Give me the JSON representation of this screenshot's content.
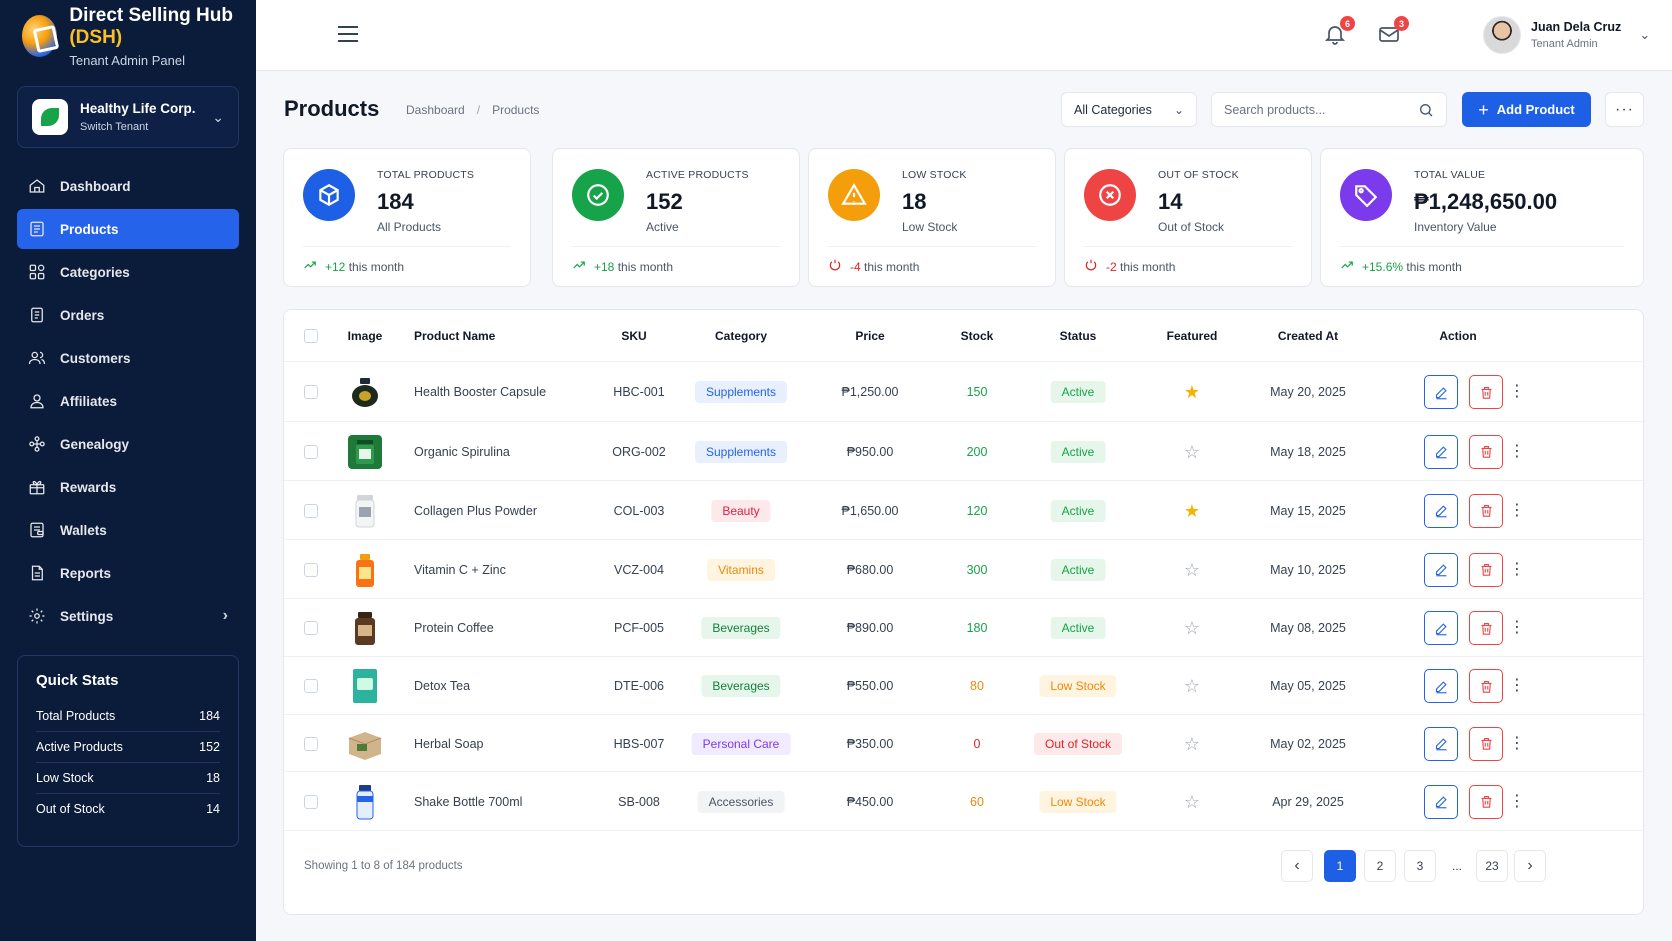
{
  "brand": {
    "title": "Direct Selling Hub",
    "title_accent": "(DSH)",
    "subtitle": "Tenant Admin Panel"
  },
  "tenant": {
    "name": "Healthy Life Corp.",
    "action": "Switch Tenant"
  },
  "nav": [
    {
      "label": "Dashboard",
      "icon": "home-icon"
    },
    {
      "label": "Products",
      "icon": "product-list-icon",
      "active": true
    },
    {
      "label": "Categories",
      "icon": "categories-icon"
    },
    {
      "label": "Orders",
      "icon": "orders-icon"
    },
    {
      "label": "Customers",
      "icon": "customers-icon"
    },
    {
      "label": "Affiliates",
      "icon": "affiliates-icon"
    },
    {
      "label": "Genealogy",
      "icon": "genealogy-icon"
    },
    {
      "label": "Rewards",
      "icon": "gift-icon"
    },
    {
      "label": "Wallets",
      "icon": "wallet-icon"
    },
    {
      "label": "Reports",
      "icon": "reports-icon"
    },
    {
      "label": "Settings",
      "icon": "gear-icon",
      "has_submenu": true
    }
  ],
  "quick_stats": {
    "title": "Quick Stats",
    "rows": [
      {
        "label": "Total Products",
        "value": "184"
      },
      {
        "label": "Active Products",
        "value": "152"
      },
      {
        "label": "Low Stock",
        "value": "18"
      },
      {
        "label": "Out of Stock",
        "value": "14"
      }
    ]
  },
  "topbar": {
    "notifications_count": "6",
    "messages_count": "3",
    "user_name": "Juan Dela Cruz",
    "user_role": "Tenant Admin"
  },
  "page": {
    "title": "Products",
    "breadcrumb": [
      "Dashboard",
      "Products"
    ],
    "category_filter": "All Categories",
    "search_placeholder": "Search products...",
    "add_button": "Add Product",
    "more_button": "···"
  },
  "stats": [
    {
      "label": "TOTAL PRODUCTS",
      "value": "184",
      "sub": "All Products",
      "trend": "+12",
      "trend_text": "this month",
      "direction": "up",
      "color": "#1d5fe5",
      "icon": "cube-icon"
    },
    {
      "label": "ACTIVE PRODUCTS",
      "value": "152",
      "sub": "Active",
      "trend": "+18",
      "trend_text": "this month",
      "direction": "up",
      "color": "#16a34a",
      "icon": "check-circle-icon"
    },
    {
      "label": "LOW STOCK",
      "value": "18",
      "sub": "Low Stock",
      "trend": "-4",
      "trend_text": "this month",
      "direction": "down",
      "color": "#f59e0b",
      "icon": "warning-icon"
    },
    {
      "label": "OUT OF STOCK",
      "value": "14",
      "sub": "Out of Stock",
      "trend": "-2",
      "trend_text": "this month",
      "direction": "down",
      "color": "#ef4444",
      "icon": "x-circle-icon"
    },
    {
      "label": "TOTAL VALUE",
      "value": "₱1,248,650.00",
      "sub": "Inventory Value",
      "trend": "+15.6%",
      "trend_text": "this month",
      "direction": "up",
      "color": "#7c3aed",
      "icon": "tag-icon"
    }
  ],
  "table": {
    "columns": [
      "Image",
      "Product Name",
      "SKU",
      "Category",
      "Price",
      "Stock",
      "Status",
      "Featured",
      "Created At",
      "Action"
    ],
    "rows": [
      {
        "name": "Health Booster Capsule",
        "sku": "HBC-001",
        "category": "Supplements",
        "price": "₱1,250.00",
        "stock": "150",
        "status": "Active",
        "featured": true,
        "created": "May 20, 2025",
        "image": "capsule-bottle-icon"
      },
      {
        "name": "Organic Spirulina",
        "sku": "ORG-002",
        "category": "Supplements",
        "price": "₱950.00",
        "stock": "200",
        "status": "Active",
        "featured": false,
        "created": "May 18, 2025",
        "image": "green-jar-icon"
      },
      {
        "name": "Collagen Plus Powder",
        "sku": "COL-003",
        "category": "Beauty",
        "price": "₱1,650.00",
        "stock": "120",
        "status": "Active",
        "featured": true,
        "created": "May 15, 2025",
        "image": "white-tub-icon"
      },
      {
        "name": "Vitamin C + Zinc",
        "sku": "VCZ-004",
        "category": "Vitamins",
        "price": "₱680.00",
        "stock": "300",
        "status": "Active",
        "featured": false,
        "created": "May 10, 2025",
        "image": "orange-bottle-icon"
      },
      {
        "name": "Protein Coffee",
        "sku": "PCF-005",
        "category": "Beverages",
        "price": "₱890.00",
        "stock": "180",
        "status": "Active",
        "featured": false,
        "created": "May 08, 2025",
        "image": "coffee-jar-icon"
      },
      {
        "name": "Detox Tea",
        "sku": "DTE-006",
        "category": "Beverages",
        "price": "₱550.00",
        "stock": "80",
        "status": "Low Stock",
        "featured": false,
        "created": "May 05, 2025",
        "image": "tea-box-icon"
      },
      {
        "name": "Herbal Soap",
        "sku": "HBS-007",
        "category": "Personal Care",
        "price": "₱350.00",
        "stock": "0",
        "status": "Out of Stock",
        "featured": false,
        "created": "May 02, 2025",
        "image": "soap-box-icon"
      },
      {
        "name": "Shake Bottle 700ml",
        "sku": "SB-008",
        "category": "Accessories",
        "price": "₱450.00",
        "stock": "60",
        "status": "Low Stock",
        "featured": false,
        "created": "Apr 29, 2025",
        "image": "shaker-bottle-icon"
      }
    ]
  },
  "footer": {
    "showing": "Showing 1 to 8 of 184 products",
    "pages": [
      "1",
      "2",
      "3",
      "...",
      "23"
    ],
    "current_page": "1"
  }
}
